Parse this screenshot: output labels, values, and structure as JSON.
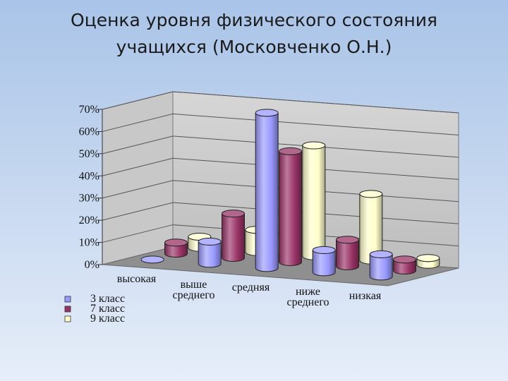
{
  "title_line1": "Оценка уровня физического состояния",
  "title_line2": "учащихся (Московченко О.Н.)",
  "chart_data": {
    "type": "bar",
    "subtype": "3d-cylinder",
    "ylim": [
      0,
      70
    ],
    "y_ticks": [
      "0%",
      "10%",
      "20%",
      "30%",
      "40%",
      "50%",
      "60%",
      "70%"
    ],
    "categories": [
      [
        "высокая"
      ],
      [
        "выше",
        "среднего"
      ],
      [
        "средняя"
      ],
      [
        "ниже",
        "среднего"
      ],
      [
        "низкая"
      ]
    ],
    "series": [
      {
        "name": "3 класс",
        "color": "#9999ff",
        "values": [
          0,
          10,
          70,
          10,
          10
        ]
      },
      {
        "name": "7 класс",
        "color": "#993366",
        "values": [
          5,
          20,
          50,
          12,
          5
        ]
      },
      {
        "name": "9 класс",
        "color": "#ffffcc",
        "values": [
          5,
          10,
          50,
          30,
          3
        ]
      }
    ],
    "grid": true,
    "legend_position": "bottom-left"
  }
}
